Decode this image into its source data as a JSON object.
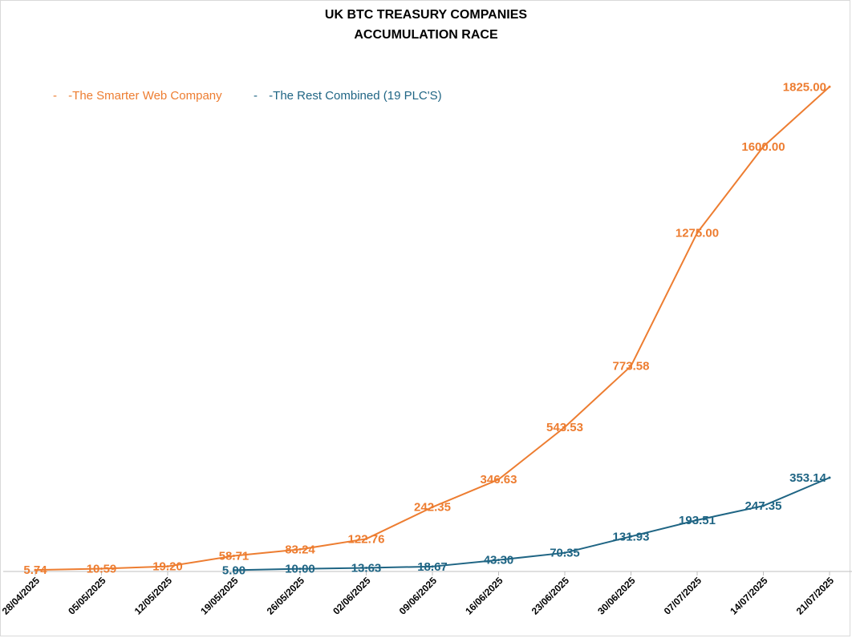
{
  "chart_data": {
    "type": "line",
    "title_lines": [
      "UK BTC TREASURY COMPANIES",
      "ACCUMULATION RACE"
    ],
    "categories": [
      "28/04/2025",
      "05/05/2025",
      "12/05/2025",
      "19/05/2025",
      "26/05/2025",
      "02/06/2025",
      "09/06/2025",
      "16/06/2025",
      "23/06/2025",
      "30/06/2025",
      "07/07/2025",
      "14/07/2025",
      "21/07/2025"
    ],
    "ylim": [
      0,
      1850
    ],
    "grid": false,
    "legend_position": "top-left",
    "series": [
      {
        "name": "The Smarter Web Company",
        "legend_label": "-The Smarter Web Company",
        "color": "#ED7D31",
        "values": [
          5.74,
          10.59,
          19.2,
          58.71,
          83.24,
          122.76,
          242.35,
          346.63,
          543.53,
          773.58,
          1275.0,
          1600.0,
          1825.0
        ],
        "labels": [
          "5.74",
          "10.59",
          "19.20",
          "58.71",
          "83.24",
          "122.76",
          "242.35",
          "346.63",
          "543.53",
          "773.58",
          "1275.00",
          "1600.00",
          "1825.00"
        ]
      },
      {
        "name": "The Rest Combined (19 PLC'S)",
        "legend_label": "-The Rest Combined (19 PLC'S)",
        "color": "#1F6584",
        "values": [
          null,
          null,
          null,
          5.0,
          10.0,
          13.63,
          18.67,
          43.3,
          70.35,
          131.93,
          193.51,
          247.35,
          353.14
        ],
        "labels": [
          "",
          "",
          "",
          "5.00",
          "10.00",
          "13.63",
          "18.67",
          "43.30",
          "70.35",
          "131.93",
          "193.51",
          "247.35",
          "353.14"
        ]
      }
    ]
  }
}
